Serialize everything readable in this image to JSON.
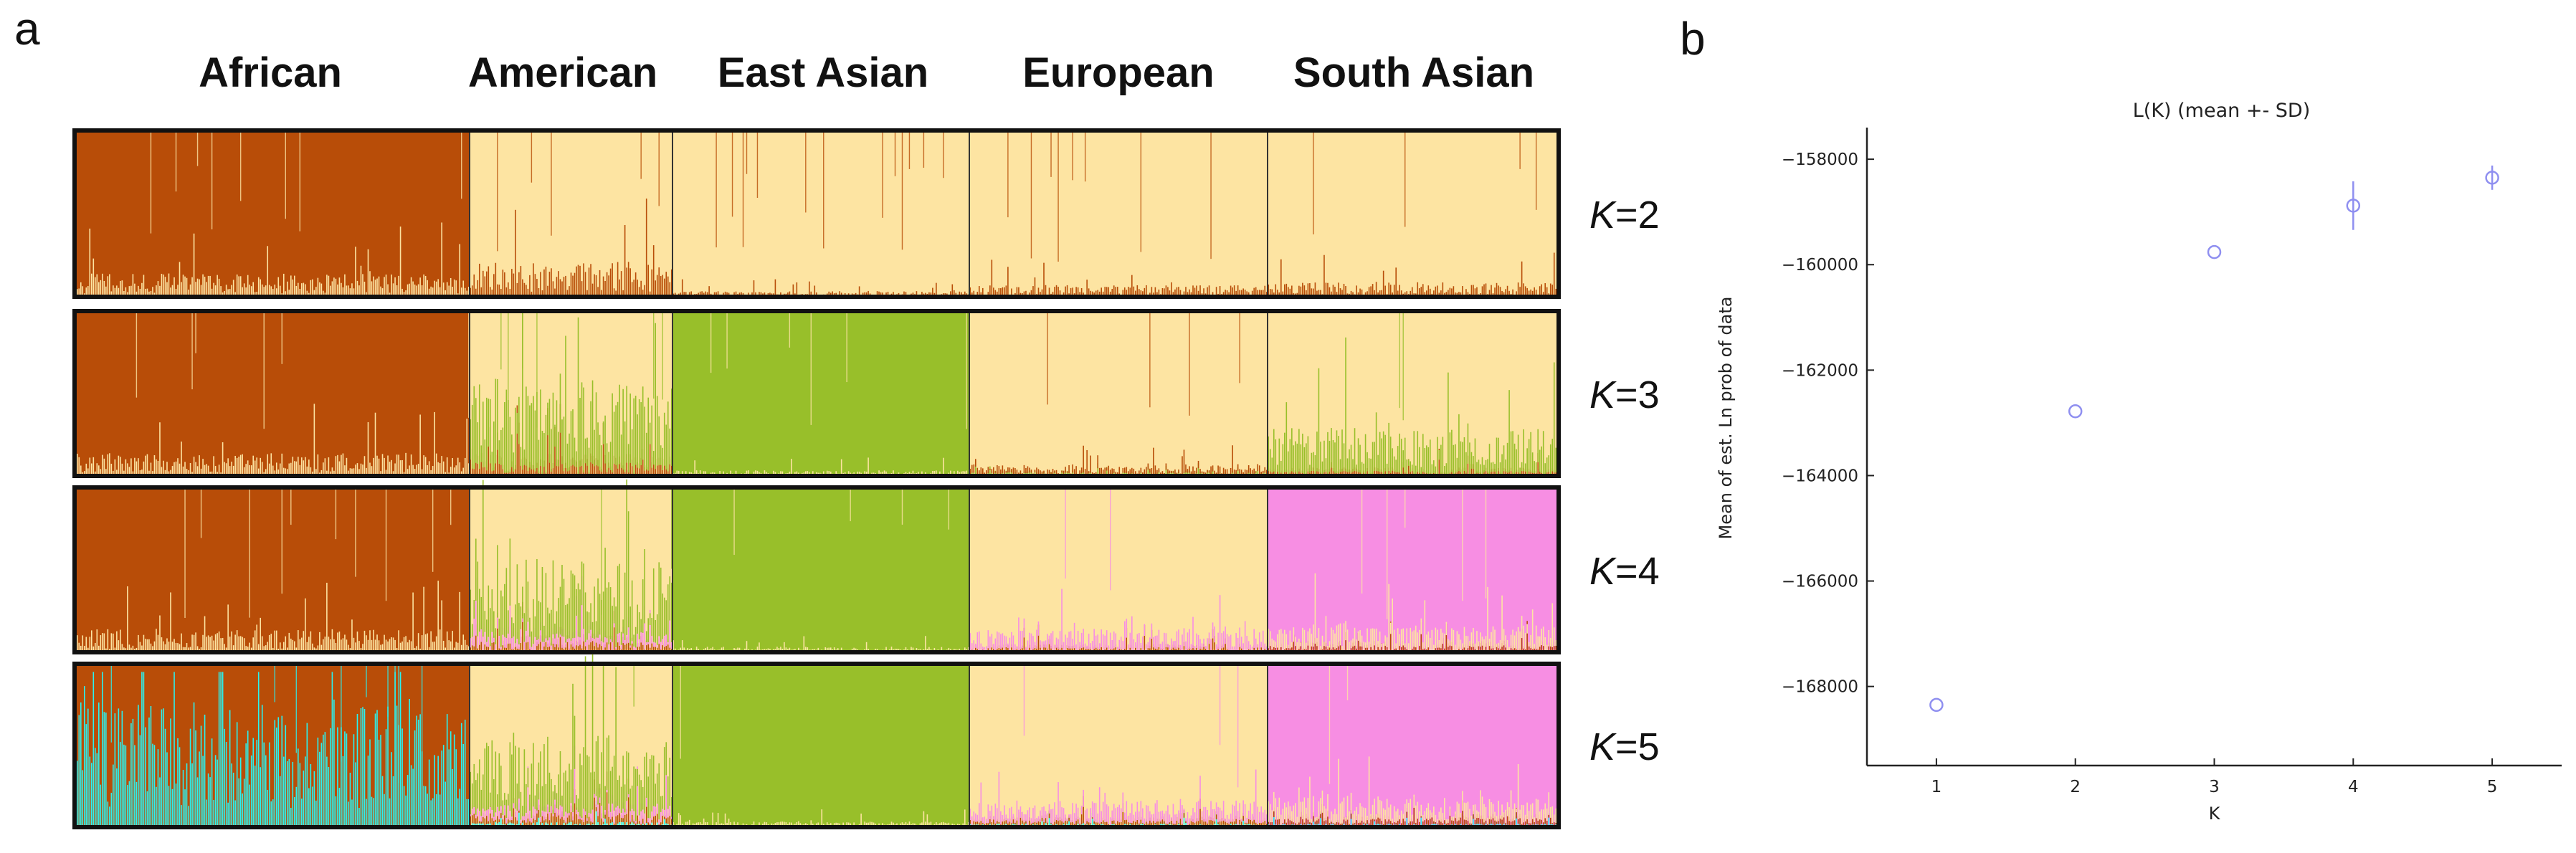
{
  "panels": {
    "left": {
      "letter": "a"
    },
    "right": {
      "letter": "b"
    }
  },
  "chart_data": [
    {
      "type": "stacked-bar",
      "title": "",
      "groups": [
        "African",
        "American",
        "East Asian",
        "European",
        "South Asian"
      ],
      "rows": [
        {
          "label_prefix": "K",
          "label_eq": "=2",
          "k": 2,
          "group_means": [
            {
              "group": "African",
              "components": {
                "brown": 0.92,
                "cream": 0.08
              }
            },
            {
              "group": "American",
              "components": {
                "cream": 0.88,
                "brown": 0.12
              }
            },
            {
              "group": "East Asian",
              "components": {
                "cream": 0.98,
                "brown": 0.02
              }
            },
            {
              "group": "European",
              "components": {
                "cream": 0.96,
                "brown": 0.04
              }
            },
            {
              "group": "South Asian",
              "components": {
                "cream": 0.95,
                "brown": 0.05
              }
            }
          ]
        },
        {
          "label_prefix": "K",
          "label_eq": "=3",
          "k": 3,
          "group_means": [
            {
              "group": "African",
              "components": {
                "brown": 0.92,
                "cream": 0.08
              }
            },
            {
              "group": "American",
              "components": {
                "cream": 0.62,
                "green": 0.3,
                "brown": 0.08
              }
            },
            {
              "group": "East Asian",
              "components": {
                "green": 0.98,
                "cream": 0.02
              }
            },
            {
              "group": "European",
              "components": {
                "cream": 0.95,
                "green": 0.02,
                "brown": 0.03
              }
            },
            {
              "group": "South Asian",
              "components": {
                "cream": 0.82,
                "green": 0.15,
                "brown": 0.03
              }
            }
          ]
        },
        {
          "label_prefix": "K",
          "label_eq": "=4",
          "k": 4,
          "group_means": [
            {
              "group": "African",
              "components": {
                "brown": 0.92,
                "cream": 0.08
              }
            },
            {
              "group": "American",
              "components": {
                "cream": 0.6,
                "green": 0.26,
                "pink": 0.08,
                "brown": 0.06
              }
            },
            {
              "group": "East Asian",
              "components": {
                "green": 0.98,
                "cream": 0.02
              }
            },
            {
              "group": "European",
              "components": {
                "cream": 0.9,
                "pink": 0.07,
                "brown": 0.03
              }
            },
            {
              "group": "South Asian",
              "components": {
                "pink": 0.88,
                "cream": 0.08,
                "brown": 0.04
              }
            }
          ]
        },
        {
          "label_prefix": "K",
          "label_eq": "=5",
          "k": 5,
          "group_means": [
            {
              "group": "African",
              "components": {
                "brown": 0.55,
                "cyan": 0.45
              }
            },
            {
              "group": "American",
              "components": {
                "cream": 0.58,
                "green": 0.25,
                "pink": 0.08,
                "cyan": 0.03,
                "brown": 0.06
              }
            },
            {
              "group": "East Asian",
              "components": {
                "green": 0.98,
                "cream": 0.02
              }
            },
            {
              "group": "European",
              "components": {
                "cream": 0.88,
                "pink": 0.07,
                "cyan": 0.02,
                "brown": 0.03
              }
            },
            {
              "group": "South Asian",
              "components": {
                "pink": 0.86,
                "cream": 0.08,
                "cyan": 0.02,
                "brown": 0.04
              }
            }
          ]
        }
      ],
      "colors": {
        "brown": "#b84d08",
        "cream": "#fde4a2",
        "green": "#98bf2a",
        "pink": "#f78ee3",
        "cyan": "#29f3f0",
        "border": "#111111"
      }
    },
    {
      "type": "scatter",
      "title": "L(K) (mean +- SD)",
      "xlabel": "K",
      "ylabel": "Mean of est. Ln prob of data",
      "x": [
        1,
        2,
        3,
        4,
        5
      ],
      "y": [
        -168350,
        -162780,
        -159760,
        -158880,
        -158350
      ],
      "sd": [
        0,
        0,
        0,
        460,
        230
      ],
      "xlim": [
        0.5,
        5.5
      ],
      "ylim": [
        -169500,
        -157400
      ],
      "xticks": [
        1,
        2,
        3,
        4,
        5
      ],
      "yticks": [
        -168000,
        -166000,
        -164000,
        -162000,
        -160000,
        -158000
      ],
      "marker": "open-circle",
      "marker_color": "#8f8ff0",
      "grid": false,
      "legend": "none"
    }
  ]
}
